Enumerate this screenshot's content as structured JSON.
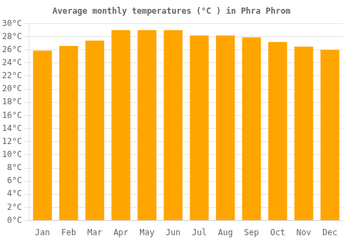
{
  "chart_data": {
    "type": "bar",
    "title": "Average monthly temperatures (°C ) in Phra Phrom",
    "categories": [
      "Jan",
      "Feb",
      "Mar",
      "Apr",
      "May",
      "Jun",
      "Jul",
      "Aug",
      "Sep",
      "Oct",
      "Nov",
      "Dec"
    ],
    "values": [
      25.9,
      26.6,
      27.4,
      29.0,
      29.0,
      29.0,
      28.2,
      28.2,
      27.9,
      27.2,
      26.5,
      26.0
    ],
    "color": "#FFA500",
    "ylim": [
      0,
      30
    ],
    "yticks": [
      {
        "value": 0,
        "label": "0°C"
      },
      {
        "value": 2,
        "label": "2°C"
      },
      {
        "value": 4,
        "label": "4°C"
      },
      {
        "value": 6,
        "label": "6°C"
      },
      {
        "value": 8,
        "label": "8°C"
      },
      {
        "value": 10,
        "label": "10°C"
      },
      {
        "value": 12,
        "label": "12°C"
      },
      {
        "value": 14,
        "label": "14°C"
      },
      {
        "value": 16,
        "label": "16°C"
      },
      {
        "value": 18,
        "label": "18°C"
      },
      {
        "value": 20,
        "label": "20°C"
      },
      {
        "value": 22,
        "label": "22°C"
      },
      {
        "value": 24,
        "label": "24°C"
      },
      {
        "value": 26,
        "label": "26°C"
      },
      {
        "value": 28,
        "label": "28°C"
      },
      {
        "value": 30,
        "label": "30°C"
      }
    ],
    "grid": true
  }
}
